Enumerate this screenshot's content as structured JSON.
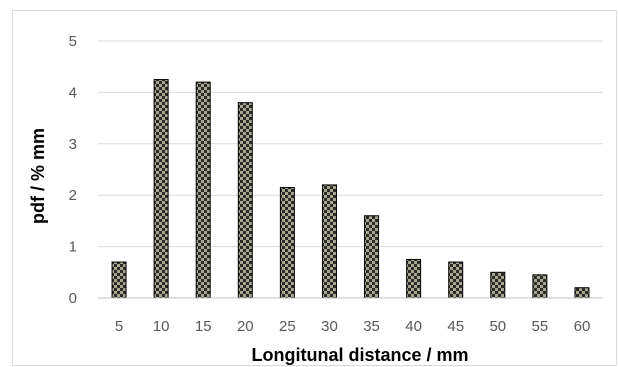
{
  "chart_data": {
    "type": "bar",
    "title": "",
    "xlabel": "Longitunal distance / mm",
    "ylabel": "pdf / % mm",
    "categories": [
      "5",
      "10",
      "15",
      "20",
      "25",
      "30",
      "35",
      "40",
      "45",
      "50",
      "55",
      "60"
    ],
    "values": [
      0.7,
      4.25,
      4.2,
      3.8,
      2.15,
      2.2,
      1.6,
      0.75,
      0.7,
      0.5,
      0.45,
      0.2
    ],
    "ylim": [
      0,
      5
    ],
    "yticks": [
      "0",
      "1",
      "2",
      "3",
      "4",
      "5"
    ],
    "grid": true,
    "legend": "none",
    "colors": {
      "bar_fill": "#a9a68f",
      "bar_pattern": "#2b2b2b",
      "bar_edge": "#000000",
      "grid": "#d9d9d9"
    }
  }
}
